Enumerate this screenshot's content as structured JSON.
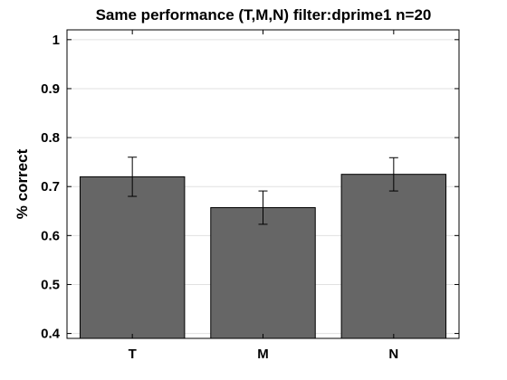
{
  "chart_data": {
    "type": "bar",
    "title": "Same performance (T,M,N) filter:dprime1 n=20",
    "xlabel": "",
    "ylabel": "% correct",
    "categories": [
      "T",
      "M",
      "N"
    ],
    "values": [
      0.72,
      0.657,
      0.725
    ],
    "error": [
      0.04,
      0.034,
      0.034
    ],
    "ylim": [
      0.39,
      1.02
    ],
    "yticks": [
      0.4,
      0.5,
      0.6,
      0.7,
      0.8,
      0.9,
      1
    ],
    "ytick_labels": [
      "0.4",
      "0.5",
      "0.6",
      "0.7",
      "0.8",
      "0.9",
      "1"
    ],
    "grid": true,
    "bar_color": "#666666",
    "grid_color": "#e1e1e1"
  }
}
